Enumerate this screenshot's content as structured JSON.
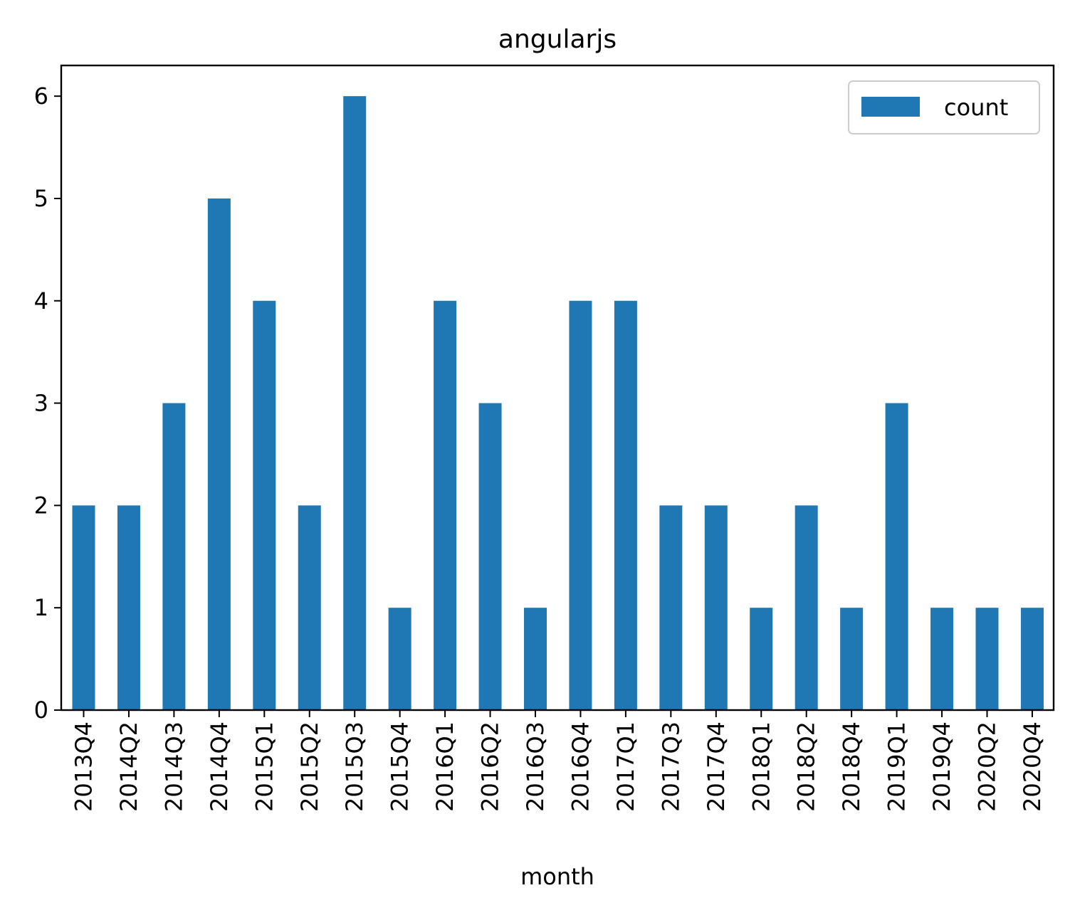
{
  "chart_data": {
    "type": "bar",
    "title": "angularjs",
    "xlabel": "month",
    "ylabel": "",
    "categories": [
      "2013Q4",
      "2014Q2",
      "2014Q3",
      "2014Q4",
      "2015Q1",
      "2015Q2",
      "2015Q3",
      "2015Q4",
      "2016Q1",
      "2016Q2",
      "2016Q3",
      "2016Q4",
      "2017Q1",
      "2017Q3",
      "2017Q4",
      "2018Q1",
      "2018Q2",
      "2018Q4",
      "2019Q1",
      "2019Q4",
      "2020Q2",
      "2020Q4"
    ],
    "series": [
      {
        "name": "count",
        "color": "#1f77b4",
        "values": [
          2,
          2,
          3,
          5,
          4,
          2,
          6,
          1,
          4,
          3,
          1,
          4,
          4,
          2,
          2,
          1,
          2,
          1,
          3,
          1,
          1,
          1
        ]
      }
    ],
    "ylim": [
      0,
      6.3
    ],
    "yticks": [
      0,
      1,
      2,
      3,
      4,
      5,
      6
    ],
    "grid": false,
    "legend_position": "upper right"
  }
}
